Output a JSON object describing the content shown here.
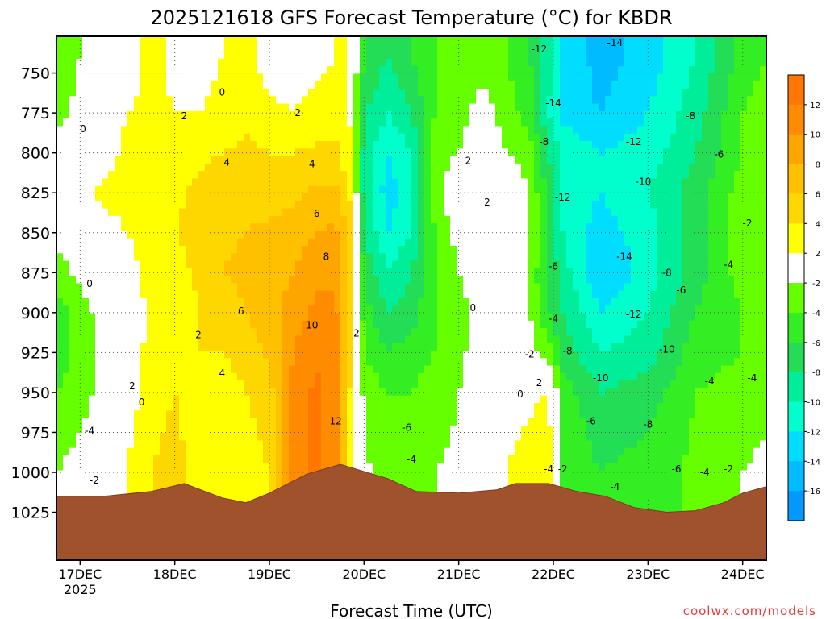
{
  "chart_data": {
    "type": "heatmap",
    "title": "2025121618 GFS Forecast Temperature (°C) for KBDR",
    "xlabel": "Forecast Time (UTC)",
    "ylabel": "",
    "credit": "coolwx.com/models",
    "x_ticks": [
      {
        "label": "17DEC",
        "sub": "2025",
        "day": 17.0
      },
      {
        "label": "18DEC",
        "sub": "",
        "day": 18.0
      },
      {
        "label": "19DEC",
        "sub": "",
        "day": 19.0
      },
      {
        "label": "20DEC",
        "sub": "",
        "day": 20.0
      },
      {
        "label": "21DEC",
        "sub": "",
        "day": 21.0
      },
      {
        "label": "22DEC",
        "sub": "",
        "day": 22.0
      },
      {
        "label": "23DEC",
        "sub": "",
        "day": 23.0
      },
      {
        "label": "24DEC",
        "sub": "",
        "day": 24.0
      }
    ],
    "xlim": [
      16.75,
      24.25
    ],
    "y_ticks": [
      "750",
      "775",
      "800",
      "825",
      "850",
      "875",
      "900",
      "925",
      "950",
      "975",
      "1000",
      "1025"
    ],
    "y_tick_values": [
      750,
      775,
      800,
      825,
      850,
      875,
      900,
      925,
      950,
      975,
      1000,
      1025
    ],
    "ylim": [
      727,
      1055
    ],
    "y_inverted": true,
    "colorbar": {
      "labels": [
        "12",
        "10",
        "8",
        "6",
        "4",
        "2",
        "-2",
        "-4",
        "-6",
        "-8",
        "-10",
        "-12",
        "-14",
        "-16"
      ],
      "bins": [
        {
          "lo": 12,
          "hi": 14,
          "color": "#ff7700"
        },
        {
          "lo": 10,
          "hi": 12,
          "color": "#ff8c00"
        },
        {
          "lo": 8,
          "hi": 10,
          "color": "#ffa500"
        },
        {
          "lo": 6,
          "hi": 8,
          "color": "#ffc000"
        },
        {
          "lo": 4,
          "hi": 6,
          "color": "#ffd700"
        },
        {
          "lo": 2,
          "hi": 4,
          "color": "#ffff00"
        },
        {
          "lo": -2,
          "hi": 2,
          "color": "#ffffff"
        },
        {
          "lo": -4,
          "hi": -2,
          "color": "#66ff00"
        },
        {
          "lo": -6,
          "hi": -4,
          "color": "#33ee22"
        },
        {
          "lo": -8,
          "hi": -6,
          "color": "#22dd55"
        },
        {
          "lo": -10,
          "hi": -8,
          "color": "#00ee99"
        },
        {
          "lo": -12,
          "hi": -10,
          "color": "#00ffcc"
        },
        {
          "lo": -14,
          "hi": -12,
          "color": "#00ddff"
        },
        {
          "lo": -16,
          "hi": -14,
          "color": "#00bbff"
        },
        {
          "lo": -18,
          "hi": -16,
          "color": "#0099ff"
        }
      ]
    },
    "series": [
      {
        "day": 16.75,
        "temps": [
          -4.0,
          -3.0,
          0.0,
          1.0,
          -1.0,
          -3.0,
          -5.0,
          -5.0,
          -4.0,
          -2.0
        ]
      },
      {
        "day": 17.0,
        "temps": [
          -2.0,
          -1.0,
          0.5,
          1.5,
          0.0,
          -1.5,
          -3.0,
          -3.5,
          -3.0,
          -1.0
        ]
      },
      {
        "day": 17.25,
        "temps": [
          -1.0,
          0.5,
          1.0,
          2.5,
          1.0,
          0.0,
          -1.0,
          -1.5,
          -1.0,
          0.0
        ]
      },
      {
        "day": 17.5,
        "temps": [
          1.0,
          2.0,
          2.5,
          3.0,
          2.0,
          1.0,
          0.5,
          0.0,
          1.0,
          2.0
        ]
      },
      {
        "day": 17.75,
        "temps": [
          2.5,
          2.5,
          3.0,
          3.5,
          3.5,
          3.0,
          2.5,
          3.0,
          3.0,
          4.0
        ]
      },
      {
        "day": 18.0,
        "temps": [
          1.5,
          2.0,
          3.0,
          3.5,
          4.0,
          3.0,
          2.0,
          3.0,
          4.0,
          5.0
        ]
      },
      {
        "day": 18.25,
        "temps": [
          1.0,
          2.0,
          3.5,
          4.5,
          5.0,
          4.5,
          4.0,
          4.0,
          3.0,
          2.5
        ]
      },
      {
        "day": 18.5,
        "temps": [
          2.0,
          2.5,
          4.0,
          5.0,
          5.5,
          6.0,
          5.0,
          4.0,
          3.0,
          2.0
        ]
      },
      {
        "day": 18.75,
        "temps": [
          2.5,
          3.5,
          4.5,
          5.5,
          6.0,
          6.5,
          6.0,
          5.0,
          4.0,
          3.0
        ]
      },
      {
        "day": 19.0,
        "temps": [
          1.0,
          2.5,
          4.0,
          5.0,
          6.5,
          7.0,
          7.0,
          6.5,
          5.0,
          4.0
        ]
      },
      {
        "day": 19.25,
        "temps": [
          1.0,
          2.0,
          4.0,
          5.5,
          7.0,
          8.0,
          9.0,
          10.0,
          10.5,
          10.5
        ]
      },
      {
        "day": 19.5,
        "temps": [
          1.5,
          2.5,
          4.5,
          6.5,
          8.0,
          9.5,
          10.5,
          11.5,
          12.5,
          12.5
        ]
      },
      {
        "day": 19.7,
        "temps": [
          2.0,
          3.0,
          4.5,
          6.5,
          8.5,
          9.5,
          10.5,
          11.0,
          11.0,
          11.0
        ]
      },
      {
        "day": 19.85,
        "temps": [
          2.0,
          2.0,
          2.5,
          4.0,
          5.0,
          5.5,
          5.5,
          5.0,
          4.0,
          3.5
        ]
      },
      {
        "day": 20.0,
        "temps": [
          -6.0,
          -8.0,
          -9.0,
          -9.0,
          -8.0,
          -6.0,
          -5.0,
          -4.0,
          -2.5,
          -1.5
        ]
      },
      {
        "day": 20.25,
        "temps": [
          -8.0,
          -10.0,
          -12.0,
          -13.0,
          -12.0,
          -10.0,
          -8.0,
          -6.0,
          -4.0,
          -3.0
        ]
      },
      {
        "day": 20.5,
        "temps": [
          -6.0,
          -8.0,
          -10.0,
          -11.0,
          -10.0,
          -8.0,
          -7.0,
          -5.0,
          -4.0,
          -2.5
        ]
      },
      {
        "day": 20.75,
        "temps": [
          -4.0,
          -4.0,
          -3.0,
          -3.0,
          -4.0,
          -4.0,
          -4.0,
          -4.0,
          -3.0,
          -2.0
        ]
      },
      {
        "day": 21.0,
        "temps": [
          -3.0,
          -3.0,
          -2.0,
          0.0,
          -1.0,
          -2.0,
          -3.0,
          -2.5,
          -2.0,
          -1.5
        ]
      },
      {
        "day": 21.25,
        "temps": [
          -3.0,
          -1.0,
          0.5,
          1.5,
          1.0,
          0.0,
          -1.0,
          -1.0,
          0.0,
          0.5
        ]
      },
      {
        "day": 21.5,
        "temps": [
          -4.0,
          -3.0,
          -2.0,
          0.0,
          0.5,
          1.0,
          1.5,
          1.0,
          1.0,
          2.0
        ]
      },
      {
        "day": 21.75,
        "temps": [
          -6.0,
          -5.0,
          -3.0,
          -2.0,
          -2.0,
          -2.5,
          -2.0,
          -1.0,
          1.5,
          3.0
        ]
      },
      {
        "day": 21.95,
        "temps": [
          -9.0,
          -10.0,
          -8.0,
          -7.0,
          -6.0,
          -6.5,
          -6.0,
          -3.0,
          2.0,
          4.0
        ]
      },
      {
        "day": 22.1,
        "temps": [
          -12.0,
          -13.0,
          -10.0,
          -11.0,
          -10.0,
          -9.0,
          -8.0,
          -7.0,
          -5.0,
          -4.0
        ]
      },
      {
        "day": 22.5,
        "temps": [
          -15.0,
          -14.0,
          -12.0,
          -12.0,
          -13.0,
          -14.0,
          -12.0,
          -10.0,
          -8.0,
          -6.0
        ]
      },
      {
        "day": 23.0,
        "temps": [
          -13.0,
          -12.0,
          -11.0,
          -10.0,
          -11.0,
          -11.0,
          -10.0,
          -9.0,
          -7.0,
          -5.0
        ]
      },
      {
        "day": 23.5,
        "temps": [
          -10.0,
          -9.0,
          -8.0,
          -7.0,
          -7.0,
          -7.0,
          -6.0,
          -5.0,
          -4.0,
          -3.5
        ]
      },
      {
        "day": 24.0,
        "temps": [
          -5.0,
          -4.0,
          -4.0,
          -3.0,
          -2.5,
          -3.0,
          -4.0,
          -4.0,
          -3.0,
          -2.0
        ]
      },
      {
        "day": 24.25,
        "temps": [
          -4.0,
          -3.0,
          -3.0,
          -2.0,
          -2.0,
          -3.0,
          -3.5,
          -3.5,
          -2.5,
          -1.5
        ]
      }
    ],
    "levels_hpa": [
      740,
      775,
      800,
      825,
      850,
      875,
      900,
      925,
      950,
      1000
    ],
    "surface_pressure": [
      {
        "day": 16.75,
        "p": 1015
      },
      {
        "day": 17.25,
        "p": 1015
      },
      {
        "day": 17.75,
        "p": 1012
      },
      {
        "day": 18.1,
        "p": 1007
      },
      {
        "day": 18.5,
        "p": 1016
      },
      {
        "day": 18.75,
        "p": 1019
      },
      {
        "day": 19.0,
        "p": 1013
      },
      {
        "day": 19.4,
        "p": 1001
      },
      {
        "day": 19.75,
        "p": 995
      },
      {
        "day": 20.25,
        "p": 1004
      },
      {
        "day": 20.55,
        "p": 1012
      },
      {
        "day": 21.0,
        "p": 1013
      },
      {
        "day": 21.4,
        "p": 1011
      },
      {
        "day": 21.6,
        "p": 1007
      },
      {
        "day": 21.95,
        "p": 1007
      },
      {
        "day": 22.25,
        "p": 1012
      },
      {
        "day": 22.55,
        "p": 1015
      },
      {
        "day": 22.85,
        "p": 1022
      },
      {
        "day": 23.2,
        "p": 1025
      },
      {
        "day": 23.5,
        "p": 1024
      },
      {
        "day": 23.8,
        "p": 1019
      },
      {
        "day": 24.0,
        "p": 1013
      },
      {
        "day": 24.25,
        "p": 1009
      }
    ],
    "contour_labels": [
      {
        "text": "0",
        "day": 17.03,
        "p": 787
      },
      {
        "text": "0",
        "day": 17.1,
        "p": 884
      },
      {
        "text": "2",
        "day": 17.55,
        "p": 948
      },
      {
        "text": "0",
        "day": 17.65,
        "p": 958
      },
      {
        "text": "-4",
        "day": 17.1,
        "p": 976
      },
      {
        "text": "-2",
        "day": 17.15,
        "p": 1007
      },
      {
        "text": "0",
        "day": 18.5,
        "p": 764
      },
      {
        "text": "2",
        "day": 18.1,
        "p": 779
      },
      {
        "text": "4",
        "day": 18.55,
        "p": 808
      },
      {
        "text": "2",
        "day": 18.25,
        "p": 916
      },
      {
        "text": "4",
        "day": 18.5,
        "p": 940
      },
      {
        "text": "6",
        "day": 18.7,
        "p": 901
      },
      {
        "text": "2",
        "day": 19.3,
        "p": 777
      },
      {
        "text": "4",
        "day": 19.45,
        "p": 809
      },
      {
        "text": "6",
        "day": 19.5,
        "p": 840
      },
      {
        "text": "8",
        "day": 19.6,
        "p": 867
      },
      {
        "text": "10",
        "day": 19.45,
        "p": 910
      },
      {
        "text": "2",
        "day": 19.92,
        "p": 915
      },
      {
        "text": "12",
        "day": 19.7,
        "p": 970
      },
      {
        "text": "2",
        "day": 21.1,
        "p": 807
      },
      {
        "text": "2",
        "day": 21.3,
        "p": 833
      },
      {
        "text": "0",
        "day": 21.15,
        "p": 899
      },
      {
        "text": "-2",
        "day": 21.75,
        "p": 928
      },
      {
        "text": "0",
        "day": 21.65,
        "p": 953
      },
      {
        "text": "2",
        "day": 21.85,
        "p": 946
      },
      {
        "text": "-6",
        "day": 20.45,
        "p": 974
      },
      {
        "text": "-4",
        "day": 20.5,
        "p": 994
      },
      {
        "text": "-4",
        "day": 21.95,
        "p": 1000
      },
      {
        "text": "-2",
        "day": 22.1,
        "p": 1000
      },
      {
        "text": "-12",
        "day": 21.85,
        "p": 737
      },
      {
        "text": "-14",
        "day": 22.65,
        "p": 733
      },
      {
        "text": "-14",
        "day": 22.0,
        "p": 771
      },
      {
        "text": "-8",
        "day": 21.9,
        "p": 795
      },
      {
        "text": "-12",
        "day": 22.85,
        "p": 795
      },
      {
        "text": "-12",
        "day": 22.1,
        "p": 830
      },
      {
        "text": "-10",
        "day": 22.95,
        "p": 820
      },
      {
        "text": "-6",
        "day": 22.0,
        "p": 873
      },
      {
        "text": "-14",
        "day": 22.75,
        "p": 867
      },
      {
        "text": "-4",
        "day": 22.0,
        "p": 906
      },
      {
        "text": "-8",
        "day": 22.15,
        "p": 926
      },
      {
        "text": "-12",
        "day": 22.85,
        "p": 903
      },
      {
        "text": "-8",
        "day": 23.2,
        "p": 877
      },
      {
        "text": "-6",
        "day": 23.35,
        "p": 888
      },
      {
        "text": "-10",
        "day": 23.2,
        "p": 925
      },
      {
        "text": "-10",
        "day": 22.5,
        "p": 943
      },
      {
        "text": "-6",
        "day": 22.4,
        "p": 970
      },
      {
        "text": "-8",
        "day": 23.0,
        "p": 972
      },
      {
        "text": "-6",
        "day": 23.3,
        "p": 1000
      },
      {
        "text": "-4",
        "day": 23.6,
        "p": 1002
      },
      {
        "text": "-2",
        "day": 23.85,
        "p": 1000
      },
      {
        "text": "-4",
        "day": 22.65,
        "p": 1011
      },
      {
        "text": "-4",
        "day": 23.65,
        "p": 945
      },
      {
        "text": "-4",
        "day": 24.1,
        "p": 943
      },
      {
        "text": "-4",
        "day": 23.85,
        "p": 872
      },
      {
        "text": "-8",
        "day": 23.45,
        "p": 779
      },
      {
        "text": "-6",
        "day": 23.75,
        "p": 803
      },
      {
        "text": "-2",
        "day": 24.05,
        "p": 846
      }
    ]
  }
}
